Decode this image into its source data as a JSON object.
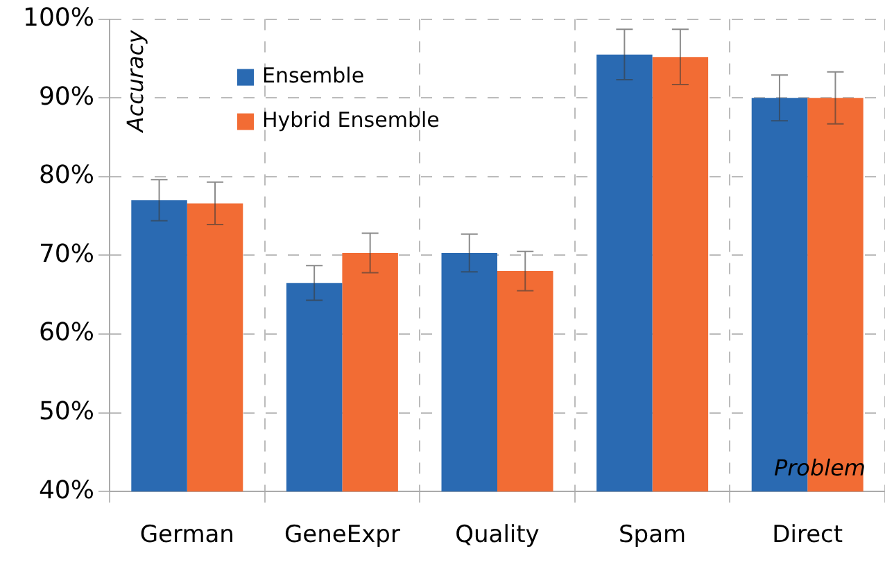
{
  "chart_data": {
    "type": "bar",
    "xlabel": "Problem",
    "ylabel": "Accuracy",
    "categories": [
      "German",
      "GeneExpr",
      "Quality",
      "Spam",
      "Direct"
    ],
    "series": [
      {
        "name": "Ensemble",
        "color": "#2a6ab2",
        "values": [
          77.0,
          66.5,
          70.3,
          95.5,
          90.0
        ],
        "errors": [
          2.6,
          2.2,
          2.4,
          3.2,
          2.9
        ]
      },
      {
        "name": "Hybrid Ensemble",
        "color": "#f26c34",
        "values": [
          76.6,
          70.3,
          68.0,
          95.2,
          90.0
        ],
        "errors": [
          2.7,
          2.5,
          2.5,
          3.5,
          3.3
        ]
      }
    ],
    "ylim": [
      40,
      100
    ],
    "yticks": [
      {
        "value": 40,
        "label": "40%"
      },
      {
        "value": 50,
        "label": "50%"
      },
      {
        "value": 60,
        "label": "60%"
      },
      {
        "value": 70,
        "label": "70%"
      },
      {
        "value": 80,
        "label": "80%"
      },
      {
        "value": 90,
        "label": "90%"
      },
      {
        "value": 100,
        "label": "100%"
      }
    ],
    "grid": true,
    "legend": "top left"
  }
}
